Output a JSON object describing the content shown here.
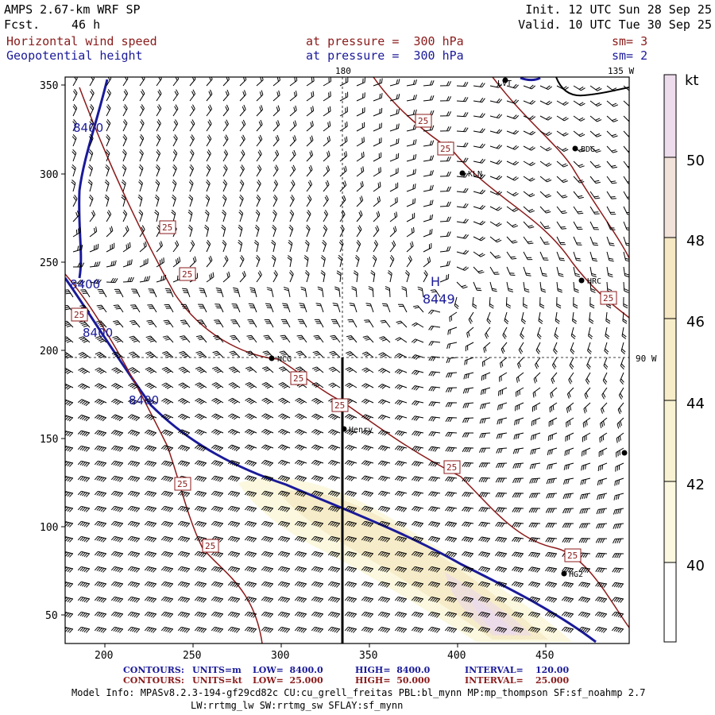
{
  "header": {
    "title": "AMPS 2.67-km WRF SP",
    "fcst_label": "Fcst.",
    "fcst_value": "46 h",
    "init": "Init. 12 UTC Sun 28 Sep 25",
    "valid": "Valid. 10 UTC Tue 30 Sep 25",
    "field1": "Horizontal wind speed",
    "field1_level": "at pressure =  300 hPa",
    "field1_sm": "sm= 3",
    "field2": "Geopotential height",
    "field2_level": "at pressure =  300 hPa",
    "field2_sm": "sm= 2"
  },
  "colors": {
    "wind_contour": "#8b1a1a",
    "height_contour": "#1a1a9a",
    "shade_40": "#fbf8df",
    "shade_42": "#f7edc8",
    "shade_44": "#f5e8c2",
    "shade_46": "#f1e2da",
    "shade_48": "#eddceb"
  },
  "map": {
    "x_ticks": [
      "200",
      "250",
      "300",
      "350",
      "400",
      "450"
    ],
    "y_ticks": [
      "350",
      "300",
      "250",
      "200",
      "150",
      "100",
      "50"
    ],
    "top_labels": [
      "180",
      "135 W"
    ],
    "right_label": "90 W",
    "high_label": "H",
    "high_value": "8449",
    "height_labels": [
      "8400",
      "8400",
      "8400",
      "8400"
    ],
    "wind_label": "25",
    "stations": [
      "LVT",
      "BDG",
      "KLN",
      "HRC",
      "NCG",
      "Henry",
      "HG2"
    ]
  },
  "colorbar": {
    "unit": "kt",
    "ticks": [
      "50",
      "48",
      "46",
      "44",
      "42",
      "40"
    ]
  },
  "footer": {
    "c1_label": "CONTOURS:",
    "c1_units": "UNITS=m",
    "c1_low": "LOW=  8400.0",
    "c1_high": "HIGH=  8400.0",
    "c1_interval": "INTERVAL=    120.00",
    "c2_label": "CONTOURS:",
    "c2_units": "UNITS=kt",
    "c2_low": "LOW=  25.000",
    "c2_high": "HIGH=  50.000",
    "c2_interval": "INTERVAL=    25.000",
    "model_info": "Model Info: MPASv8.2.3-194-gf29cd82c CU:cu_grell_freitas PBL:bl_mynn MP:mp_thompson SF:sf_noahmp 2.7",
    "model_info2": "LW:rrtmg_lw SW:rrtmg_sw SFLAY:sf_mynn"
  }
}
